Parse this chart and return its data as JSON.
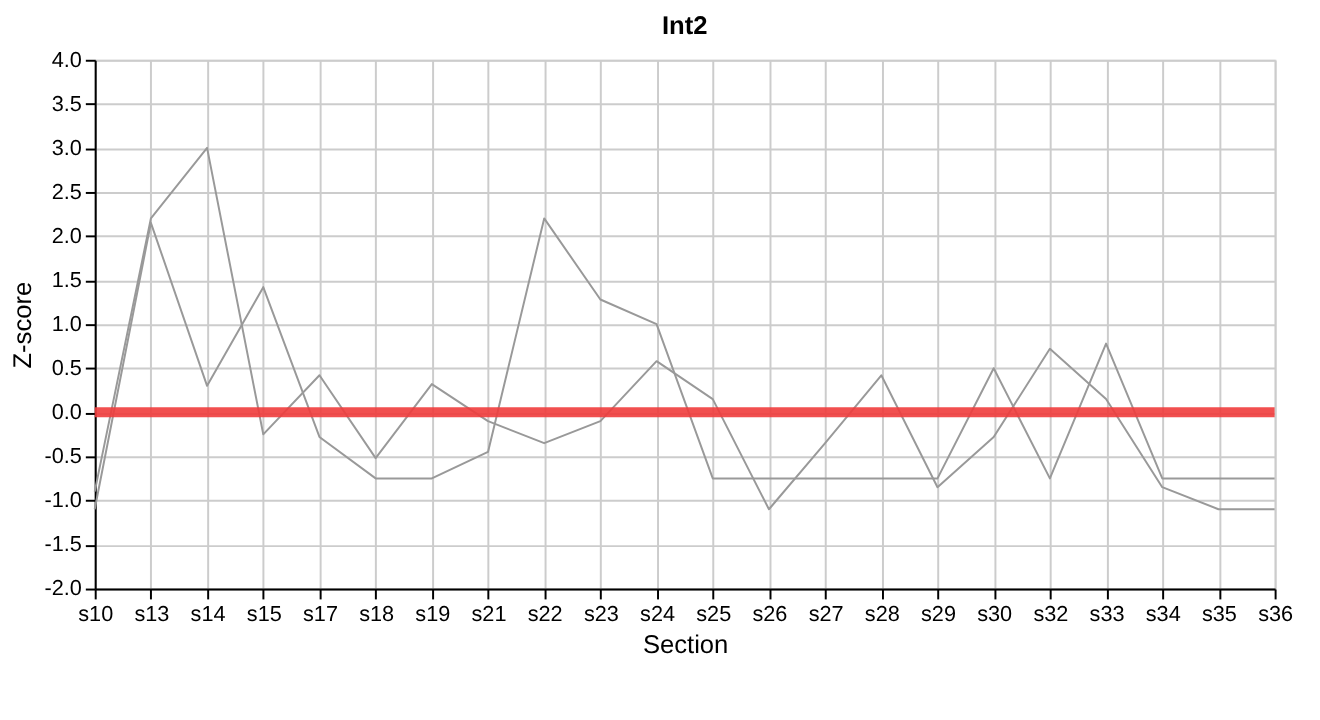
{
  "chart_data": {
    "type": "line",
    "title": "Int2",
    "xlabel": "Section",
    "ylabel": "Z-score",
    "categories": [
      "s10",
      "s13",
      "s14",
      "s15",
      "s17",
      "s18",
      "s19",
      "s21",
      "s22",
      "s23",
      "s24",
      "s25",
      "s26",
      "s27",
      "s28",
      "s29",
      "s30",
      "s32",
      "s33",
      "s34",
      "s35",
      "s36"
    ],
    "series": [
      {
        "color": "#999999",
        "values": [
          -0.9,
          2.2,
          3.0,
          -0.25,
          0.42,
          -0.52,
          0.32,
          -0.1,
          -0.35,
          -0.1,
          0.58,
          0.15,
          -1.1,
          -0.35,
          0.42,
          -0.85,
          -0.28,
          0.72,
          0.15,
          -0.85,
          -1.1,
          -1.1
        ]
      },
      {
        "color": "#999999",
        "values": [
          -1.1,
          2.15,
          0.3,
          1.42,
          -0.28,
          -0.75,
          -0.75,
          -0.45,
          2.2,
          1.28,
          1.0,
          -0.75,
          -0.75,
          -0.75,
          -0.75,
          -0.75,
          0.5,
          -0.75,
          0.78,
          -0.75,
          -0.75,
          -0.75
        ]
      }
    ],
    "ylim": [
      -2.0,
      4.0
    ],
    "yticks": [
      {
        "value": -2,
        "label": "-2.0"
      },
      {
        "value": -1.5,
        "label": "-1.5"
      },
      {
        "value": -1,
        "label": "-1.0"
      },
      {
        "value": -0.5,
        "label": "-0.5"
      },
      {
        "value": 0,
        "label": "0.0"
      },
      {
        "value": 0.5,
        "label": "0.5"
      },
      {
        "value": 1,
        "label": "1.0"
      },
      {
        "value": 1.5,
        "label": "1.5"
      },
      {
        "value": 2,
        "label": "2.0"
      },
      {
        "value": 2.5,
        "label": "2.5"
      },
      {
        "value": 3,
        "label": "3.0"
      },
      {
        "value": 3.5,
        "label": "3.5"
      },
      {
        "value": 4,
        "label": "4.0"
      }
    ],
    "ref_lines": [
      {
        "axis": "y",
        "value": 0,
        "color": "#f03c3c"
      }
    ],
    "grid": true,
    "marker": "none",
    "line_style": "solid"
  }
}
